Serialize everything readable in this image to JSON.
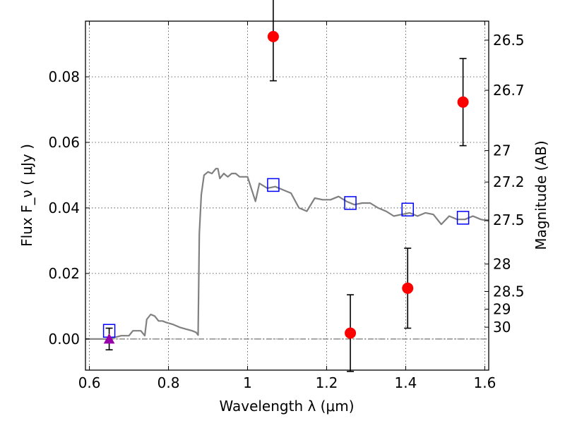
{
  "chart_data": {
    "type": "scatter",
    "xlabel": "Wavelength λ (μm)",
    "ylabel": "Flux F_ν ( μJy )",
    "ylabel_right": "Magnitude (AB)",
    "xlim": [
      0.59,
      1.61
    ],
    "ylim": [
      -0.0095,
      0.097
    ],
    "grid": true,
    "x_ticks": [
      0.6,
      0.8,
      1.0,
      1.2,
      1.4,
      1.6
    ],
    "x_tick_labels": [
      "0.6",
      "0.8",
      "1",
      "1.2",
      "1.4",
      "1.6"
    ],
    "y_ticks": [
      0.0,
      0.02,
      0.04,
      0.06,
      0.08
    ],
    "y_tick_labels": [
      "0.00",
      "0.02",
      "0.04",
      "0.06",
      "0.08"
    ],
    "right_ticks": [
      {
        "label": "26.5",
        "flux": 0.0912
      },
      {
        "label": "26.7",
        "flux": 0.0759
      },
      {
        "label": "27",
        "flux": 0.0575
      },
      {
        "label": "27.2",
        "flux": 0.0479
      },
      {
        "label": "27.5",
        "flux": 0.0363
      },
      {
        "label": "28",
        "flux": 0.0229
      },
      {
        "label": "28.5",
        "flux": 0.0145
      },
      {
        "label": "29",
        "flux": 0.0091
      },
      {
        "label": "30",
        "flux": 0.0036
      }
    ],
    "series": [
      {
        "kind": "line",
        "color": "#808080",
        "x": [
          0.59,
          0.62,
          0.65,
          0.68,
          0.7,
          0.71,
          0.73,
          0.74,
          0.745,
          0.755,
          0.765,
          0.775,
          0.785,
          0.795,
          0.81,
          0.83,
          0.845,
          0.86,
          0.87,
          0.875,
          0.878,
          0.883,
          0.89,
          0.9,
          0.91,
          0.92,
          0.925,
          0.93,
          0.94,
          0.95,
          0.96,
          0.97,
          0.98,
          1.0,
          1.02,
          1.03,
          1.05,
          1.07,
          1.09,
          1.11,
          1.13,
          1.15,
          1.17,
          1.19,
          1.21,
          1.23,
          1.25,
          1.27,
          1.29,
          1.31,
          1.33,
          1.35,
          1.37,
          1.39,
          1.41,
          1.43,
          1.45,
          1.47,
          1.49,
          1.51,
          1.53,
          1.55,
          1.57,
          1.59,
          1.61
        ],
        "y": [
          0.0,
          0.0,
          0.0,
          0.001,
          0.001,
          0.0025,
          0.0025,
          0.001,
          0.006,
          0.0075,
          0.007,
          0.0055,
          0.0055,
          0.005,
          0.0045,
          0.0035,
          0.003,
          0.0025,
          0.002,
          0.0012,
          0.032,
          0.044,
          0.05,
          0.051,
          0.0505,
          0.052,
          0.052,
          0.049,
          0.0505,
          0.0495,
          0.0505,
          0.0505,
          0.0495,
          0.0495,
          0.042,
          0.0475,
          0.046,
          0.0465,
          0.0455,
          0.0445,
          0.04,
          0.039,
          0.043,
          0.0425,
          0.0425,
          0.0435,
          0.042,
          0.041,
          0.0415,
          0.0415,
          0.04,
          0.039,
          0.0375,
          0.038,
          0.0385,
          0.0375,
          0.0385,
          0.038,
          0.035,
          0.0375,
          0.0365,
          0.0365,
          0.0375,
          0.0365,
          0.036
        ]
      },
      {
        "kind": "points",
        "marker": "square",
        "color": "#0000ff",
        "x": [
          0.65,
          1.065,
          1.26,
          1.405,
          1.545
        ],
        "y": [
          0.0025,
          0.047,
          0.0415,
          0.0395,
          0.037
        ]
      },
      {
        "kind": "errorbar",
        "marker": "circle",
        "color": "#ff0000",
        "x": [
          1.065,
          1.26,
          1.405,
          1.545
        ],
        "y": [
          0.0923,
          0.0018,
          0.0155,
          0.0723
        ],
        "err": [
          0.0135,
          0.0117,
          0.0122,
          0.0133
        ]
      },
      {
        "kind": "errorbar",
        "marker": "triangle",
        "color": "#9900aa",
        "x": [
          0.65
        ],
        "y": [
          0.0
        ],
        "err": [
          0.0033
        ]
      }
    ],
    "reference_line": {
      "y": 0.0,
      "style": "dash-dot"
    }
  }
}
